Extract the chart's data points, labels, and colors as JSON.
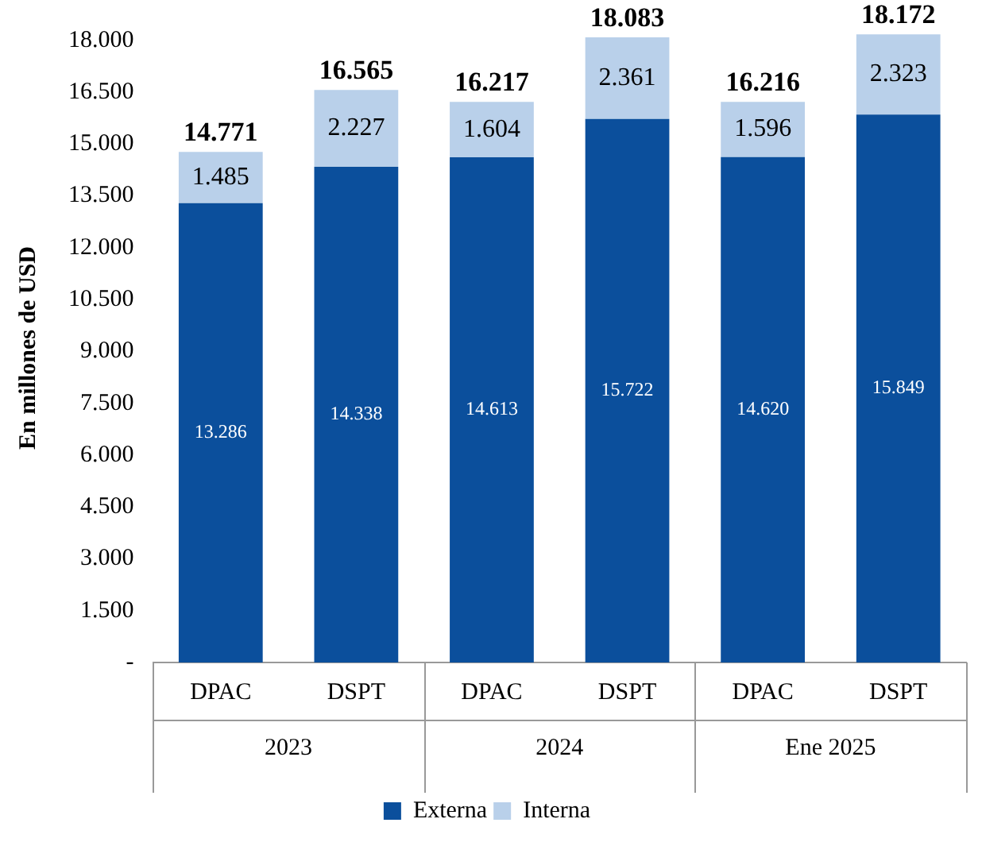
{
  "chart_data": {
    "type": "bar",
    "stacked": true,
    "ylabel": "En millones de USD",
    "categories": [
      "DPAC",
      "DSPT",
      "DPAC",
      "DSPT",
      "DPAC",
      "DSPT"
    ],
    "annotations": [
      "2023",
      "2024",
      "Ene 2025"
    ],
    "series": [
      {
        "name": "Externa",
        "color": "#0b4f9c",
        "values": [
          13286,
          14338,
          14613,
          15722,
          14620,
          15849
        ],
        "value_labels": [
          "13.286",
          "14.338",
          "14.613",
          "15.722",
          "14.620",
          "15.849"
        ]
      },
      {
        "name": "Interna",
        "color": "#b9d0ea",
        "values": [
          1485,
          2227,
          1604,
          2361,
          1596,
          2323
        ],
        "value_labels": [
          "1.485",
          "2.227",
          "1.604",
          "2.361",
          "1.596",
          "2.323"
        ]
      }
    ],
    "totals": [
      "14.771",
      "16.565",
      "16.217",
      "18.083",
      "16.216",
      "18.172"
    ],
    "ylim": [
      0,
      18200
    ],
    "yticks": [
      {
        "value": 0,
        "label": "-"
      },
      {
        "value": 1500,
        "label": "1.500"
      },
      {
        "value": 3000,
        "label": "3.000"
      },
      {
        "value": 4500,
        "label": "4.500"
      },
      {
        "value": 6000,
        "label": "6.000"
      },
      {
        "value": 7500,
        "label": "7.500"
      },
      {
        "value": 9000,
        "label": "9.000"
      },
      {
        "value": 10500,
        "label": "10.500"
      },
      {
        "value": 12000,
        "label": "12.000"
      },
      {
        "value": 13500,
        "label": "13.500"
      },
      {
        "value": 15000,
        "label": "15.000"
      },
      {
        "value": 16500,
        "label": "16.500"
      },
      {
        "value": 18000,
        "label": "18.000"
      }
    ],
    "grid": false,
    "legend": "bottom"
  }
}
